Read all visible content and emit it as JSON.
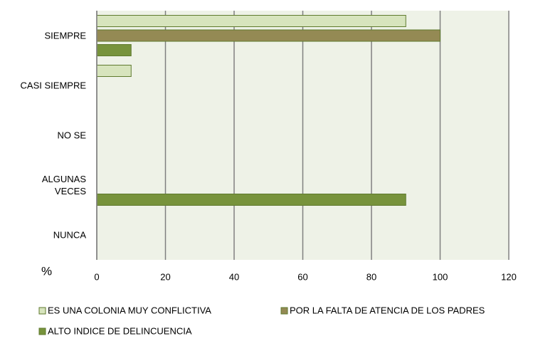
{
  "chart_data": {
    "type": "bar",
    "orientation": "horizontal",
    "categories": [
      "SIEMPRE",
      "CASI SIEMPRE",
      "NO SE",
      "ALGUNAS\nVECES",
      "NUNCA"
    ],
    "series": [
      {
        "name": "ES UNA COLONIA MUY CONFLICTIVA",
        "color": "#d7e4bd",
        "values": [
          90,
          10,
          0,
          0,
          0
        ]
      },
      {
        "name": "POR LA FALTA DE ATENCIA DE LOS PADRES",
        "color": "#948a54",
        "values": [
          100,
          0,
          0,
          0,
          0
        ]
      },
      {
        "name": "ALTO INDICE DE DELINCUENCIA",
        "color": "#77933c",
        "values": [
          10,
          0,
          0,
          90,
          0
        ]
      }
    ],
    "xlabel": "%",
    "xlim": [
      0,
      120
    ],
    "xticks": [
      0,
      20,
      40,
      60,
      80,
      100,
      120
    ],
    "grid": true
  }
}
